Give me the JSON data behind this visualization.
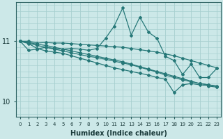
{
  "xlabel": "Humidex (Indice chaleur)",
  "ylabel": "",
  "bg_color": "#cce8e8",
  "grid_color": "#a8d0d0",
  "line_color": "#267878",
  "xlim": [
    -0.5,
    23.5
  ],
  "ylim": [
    9.75,
    11.65
  ],
  "yticks": [
    10,
    11
  ],
  "xticks": [
    0,
    1,
    2,
    3,
    4,
    5,
    6,
    7,
    8,
    9,
    10,
    11,
    12,
    13,
    14,
    15,
    16,
    17,
    18,
    19,
    20,
    21,
    22,
    23
  ],
  "lines": [
    {
      "x": [
        0,
        1,
        2,
        3,
        4,
        5,
        6,
        7,
        8,
        9,
        10,
        11,
        12,
        13,
        14,
        15,
        16,
        17,
        18,
        19,
        20,
        21,
        22,
        23
      ],
      "y": [
        11.0,
        10.85,
        10.87,
        10.9,
        10.88,
        10.87,
        10.88,
        10.87,
        10.85,
        10.88,
        11.05,
        11.25,
        11.55,
        11.1,
        11.4,
        11.15,
        11.05,
        10.75,
        10.68,
        10.45,
        10.62,
        10.4,
        10.4,
        10.55
      ]
    },
    {
      "x": [
        0,
        1,
        2,
        3,
        4,
        5,
        6,
        7,
        8,
        9,
        10,
        11,
        12,
        13,
        14,
        15,
        16,
        17,
        18,
        19,
        20,
        21,
        22,
        23
      ],
      "y": [
        11.0,
        11.0,
        10.97,
        10.98,
        10.97,
        10.97,
        10.96,
        10.95,
        10.94,
        10.93,
        10.92,
        10.91,
        10.9,
        10.88,
        10.86,
        10.84,
        10.82,
        10.79,
        10.76,
        10.72,
        10.68,
        10.64,
        10.6,
        10.56
      ]
    },
    {
      "x": [
        0,
        1,
        2,
        3,
        4,
        5,
        6,
        7,
        8,
        9,
        10,
        11,
        12,
        13,
        14,
        15,
        16,
        17,
        18,
        19,
        20,
        21,
        22,
        23
      ],
      "y": [
        11.0,
        10.98,
        10.95,
        10.93,
        10.9,
        10.87,
        10.84,
        10.81,
        10.78,
        10.75,
        10.72,
        10.69,
        10.66,
        10.62,
        10.58,
        10.54,
        10.5,
        10.46,
        10.42,
        10.38,
        10.34,
        10.3,
        10.28,
        10.26
      ]
    },
    {
      "x": [
        0,
        1,
        2,
        3,
        4,
        5,
        6,
        7,
        8,
        9,
        10,
        11,
        12,
        13,
        14,
        15,
        16,
        17,
        18,
        19,
        20,
        21,
        22,
        23
      ],
      "y": [
        11.0,
        10.97,
        10.93,
        10.9,
        10.87,
        10.84,
        10.81,
        10.78,
        10.75,
        10.73,
        10.7,
        10.67,
        10.64,
        10.61,
        10.57,
        10.53,
        10.49,
        10.44,
        10.4,
        10.36,
        10.33,
        10.3,
        10.28,
        10.25
      ]
    },
    {
      "x": [
        0,
        1,
        2,
        3,
        4,
        5,
        6,
        7,
        8,
        9,
        10,
        11,
        12,
        13,
        14,
        15,
        16,
        17,
        18,
        19,
        20,
        21,
        22,
        23
      ],
      "y": [
        11.0,
        10.96,
        10.88,
        10.84,
        10.82,
        10.8,
        10.76,
        10.72,
        10.68,
        10.64,
        10.6,
        10.56,
        10.53,
        10.5,
        10.47,
        10.44,
        10.4,
        10.37,
        10.15,
        10.28,
        10.3,
        10.28,
        10.26,
        10.24
      ]
    }
  ]
}
